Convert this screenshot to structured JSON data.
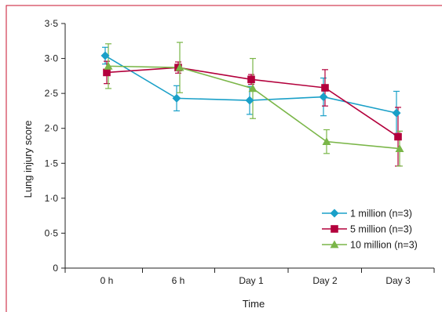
{
  "colors": {
    "frame": "#c8102e",
    "axis": "#222222",
    "series": [
      "#1aa0c8",
      "#b3003c",
      "#7ab648"
    ]
  },
  "chart_data": {
    "type": "line",
    "xlabel": "Time",
    "ylabel": "Lung injury score",
    "categories": [
      "0 h",
      "6 h",
      "Day 1",
      "Day 2",
      "Day 3"
    ],
    "ylim": [
      0,
      3.5
    ],
    "yticks": [
      "0",
      "0·5",
      "1·0",
      "1·5",
      "2·0",
      "2·5",
      "3·0",
      "3·5"
    ],
    "ytick_values": [
      0,
      0.5,
      1.0,
      1.5,
      2.0,
      2.5,
      3.0,
      3.5
    ],
    "grid": false,
    "legend_position": "bottom-right",
    "series": [
      {
        "name": "1 million (n=3)",
        "marker": "diamond",
        "values": [
          3.04,
          2.43,
          2.4,
          2.45,
          2.22
        ],
        "error": [
          0.12,
          0.18,
          0.2,
          0.27,
          0.31
        ]
      },
      {
        "name": "5 million (n=3)",
        "marker": "square",
        "values": [
          2.8,
          2.87,
          2.7,
          2.58,
          1.88
        ],
        "error": [
          0.16,
          0.08,
          0.07,
          0.26,
          0.42
        ]
      },
      {
        "name": "10 million (n=3)",
        "marker": "triangle",
        "values": [
          2.89,
          2.87,
          2.57,
          1.81,
          1.71
        ],
        "error": [
          0.32,
          0.36,
          0.43,
          0.17,
          0.25
        ]
      }
    ]
  }
}
